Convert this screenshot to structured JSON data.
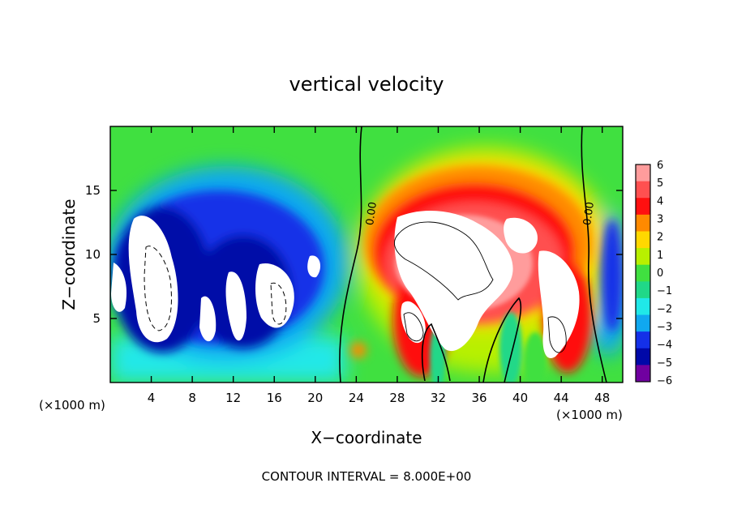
{
  "chart_data": {
    "type": "heatmap",
    "title": "vertical velocity",
    "xlabel": "X−coordinate",
    "ylabel": "Z−coordinate",
    "x_unit_left": "(×1000 m)",
    "x_unit_right": "(×1000 m)",
    "footer": "CONTOUR INTERVAL = 8.000E+00",
    "xlim": [
      0,
      50
    ],
    "ylim": [
      0,
      20
    ],
    "x_ticks": [
      4,
      8,
      12,
      16,
      20,
      24,
      28,
      32,
      36,
      40,
      44,
      48
    ],
    "x_tick_labels": [
      "4",
      "8",
      "12",
      "16",
      "20",
      "24",
      "28",
      "32",
      "36",
      "40",
      "44",
      "48"
    ],
    "y_ticks": [
      5,
      10,
      15
    ],
    "y_tick_labels": [
      "5",
      "10",
      "15"
    ],
    "contour_labels": [
      {
        "text": "0.00",
        "x": 25.4,
        "y": 13.2
      },
      {
        "text": "0.00",
        "x": 46.6,
        "y": 13.2
      }
    ],
    "colorbar": {
      "levels": [
        6,
        5,
        4,
        3,
        2,
        1,
        0,
        -1,
        -2,
        -3,
        -4,
        -5,
        -6
      ],
      "labels": [
        "6",
        "5",
        "4",
        "3",
        "2",
        "1",
        "0",
        "−1",
        "−2",
        "−3",
        "−4",
        "−5",
        "−6"
      ],
      "colors": [
        "#ff9c9c",
        "#ff5050",
        "#ff1010",
        "#ff8a00",
        "#ffd800",
        "#b8f000",
        "#40e040",
        "#20d888",
        "#20e8e8",
        "#10a8f0",
        "#1430e8",
        "#0008a8",
        "#7000a0"
      ]
    }
  }
}
